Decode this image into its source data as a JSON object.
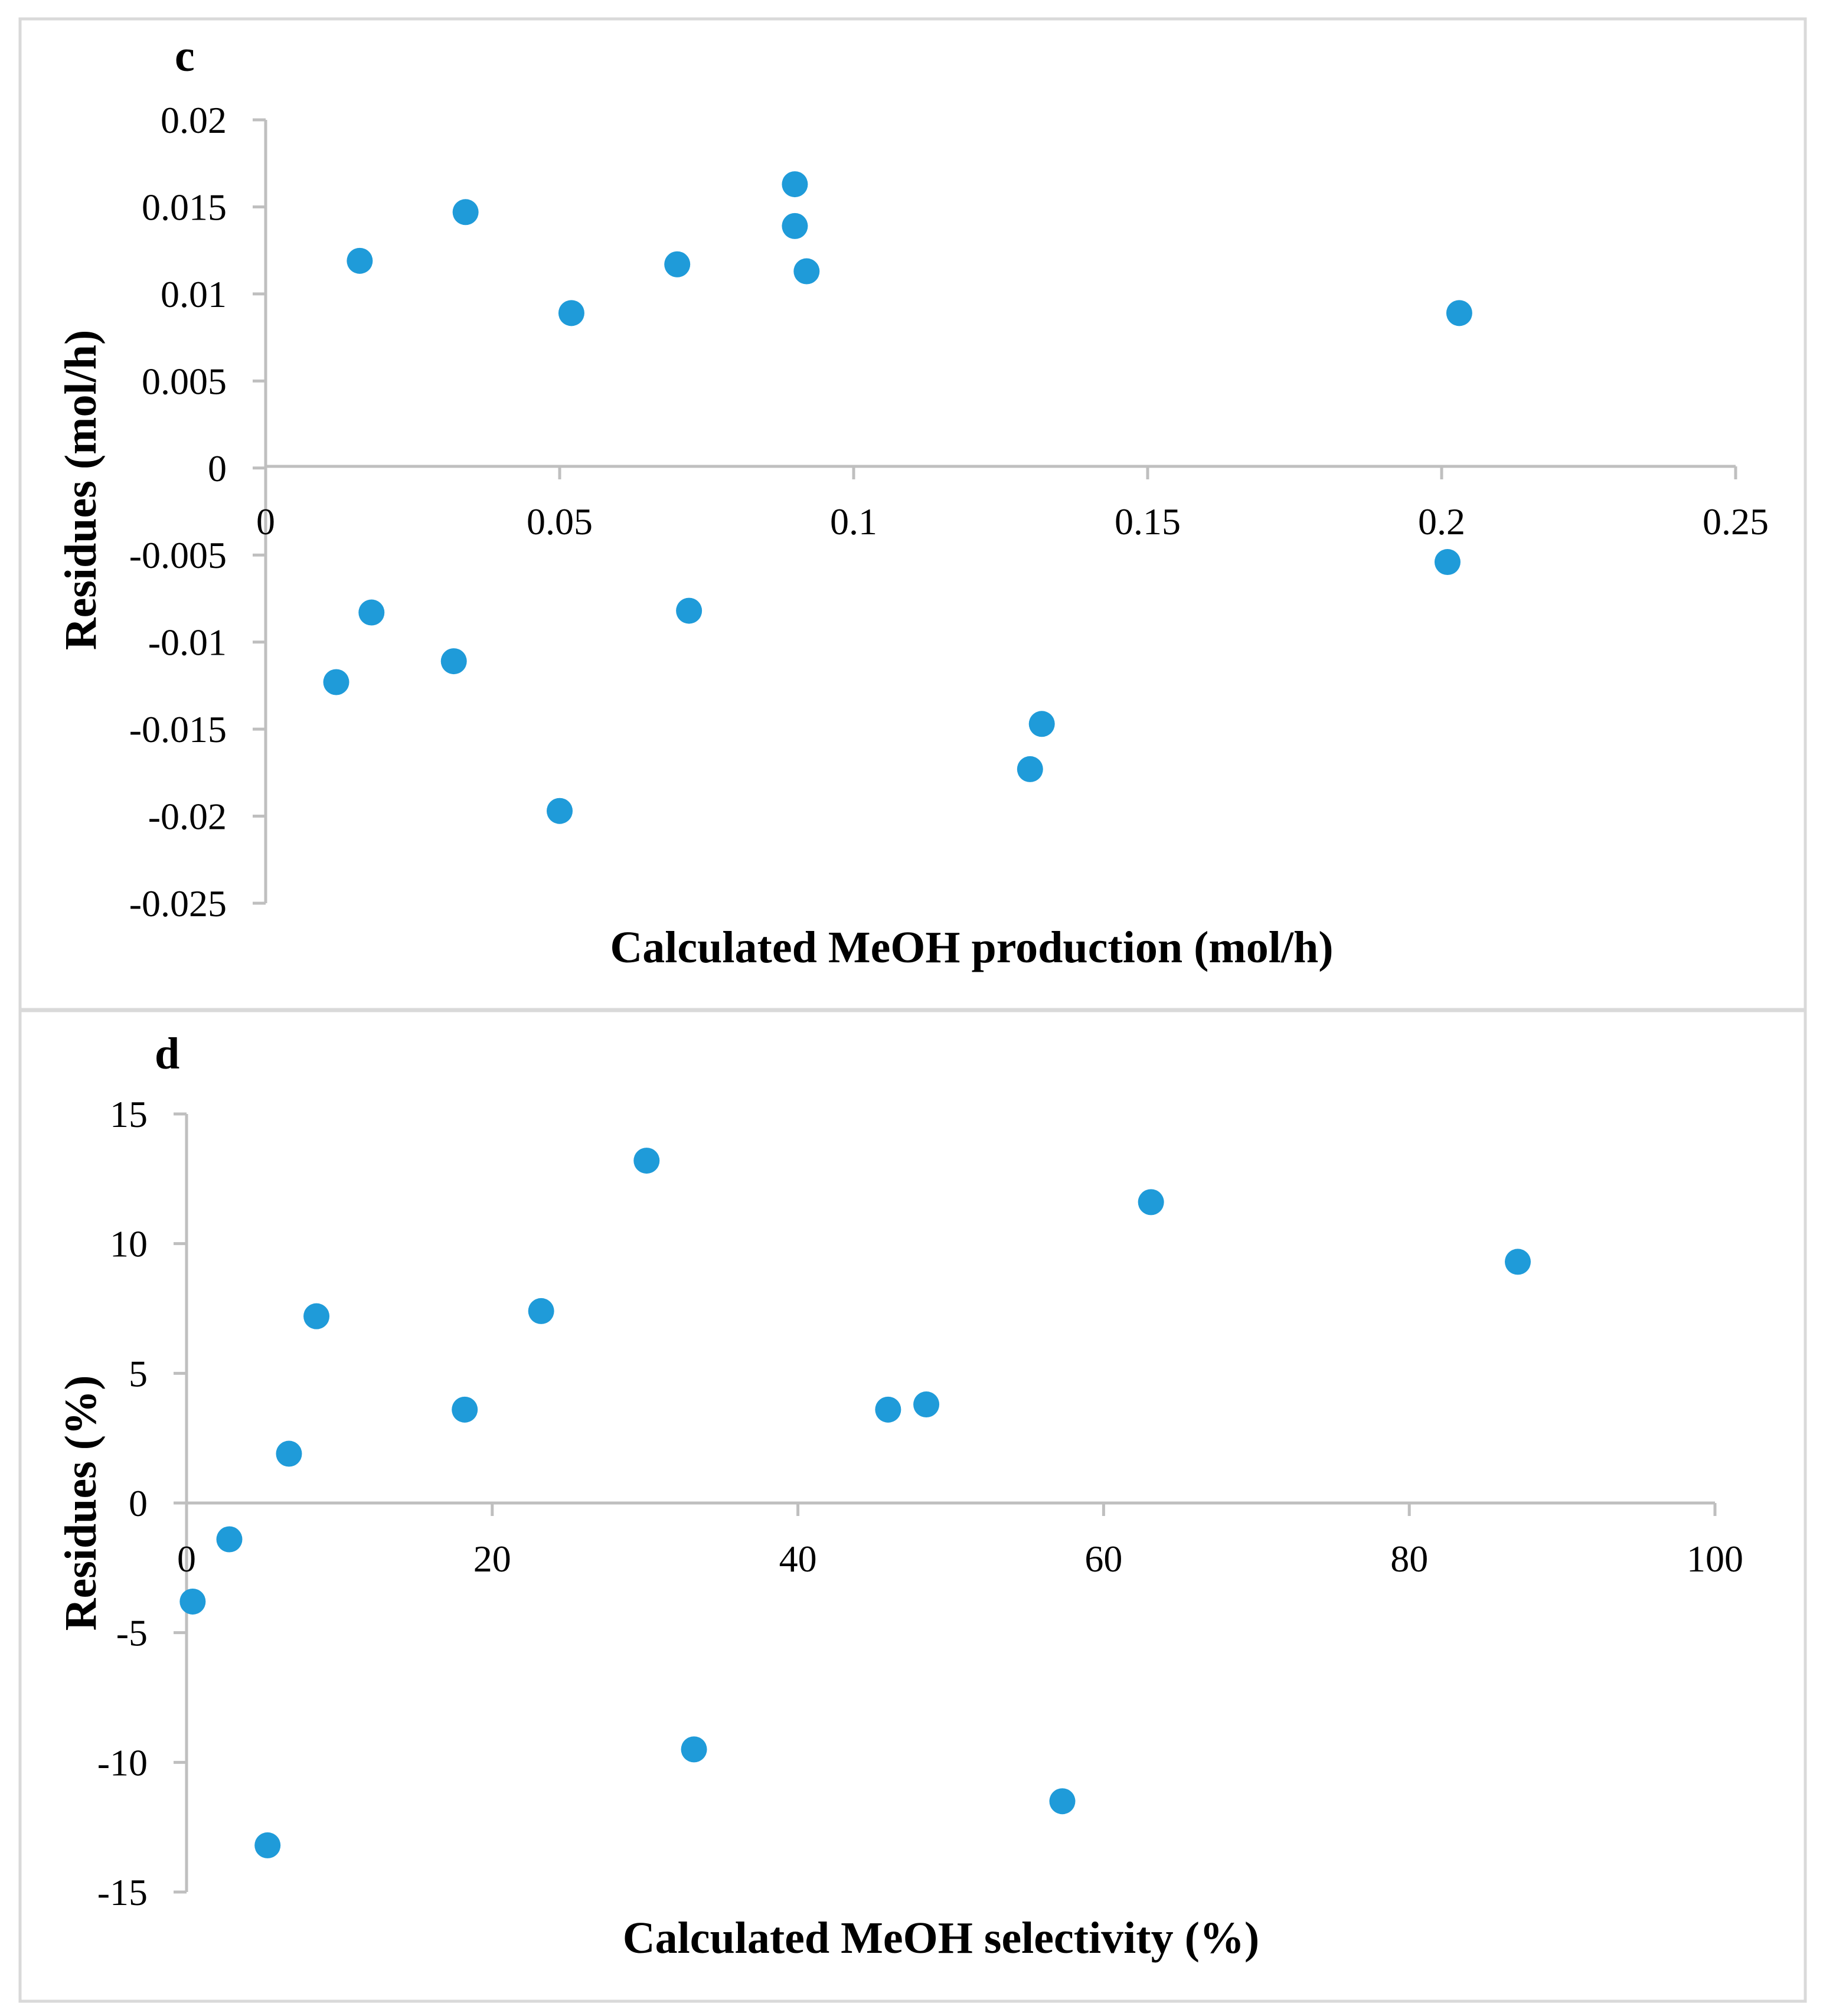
{
  "chart_data": [
    {
      "panel": "c",
      "type": "scatter",
      "title": "",
      "xlabel": "Calculated MeOH production (mol/h)",
      "ylabel": "Residues (mol/h)",
      "xlim": [
        0,
        0.25
      ],
      "ylim": [
        -0.025,
        0.02
      ],
      "x_ticks": [
        0,
        0.05,
        0.1,
        0.15,
        0.2,
        0.25
      ],
      "x_tick_labels": [
        "0",
        "0.05",
        "0.1",
        "0.15",
        "0.2",
        "0.25"
      ],
      "y_ticks": [
        0.02,
        0.015,
        0.01,
        0.005,
        0,
        -0.005,
        -0.01,
        -0.015,
        -0.02,
        -0.025
      ],
      "y_tick_labels": [
        "0.02",
        "0.015",
        "0.01",
        "0.005",
        "0",
        "-0.005",
        "-0.01",
        "-0.015",
        "-0.02",
        "-0.025"
      ],
      "marker_color": "#1f9bd9",
      "grid": false,
      "x": [
        0.016,
        0.034,
        0.052,
        0.07,
        0.09,
        0.09,
        0.092,
        0.203,
        0.012,
        0.018,
        0.032,
        0.05,
        0.072,
        0.13,
        0.132,
        0.201
      ],
      "y": [
        0.0119,
        0.0147,
        0.0089,
        0.0117,
        0.0163,
        0.0139,
        0.0113,
        0.0089,
        -0.0123,
        -0.0083,
        -0.0111,
        -0.0197,
        -0.0082,
        -0.0173,
        -0.0147,
        -0.0054
      ]
    },
    {
      "panel": "d",
      "type": "scatter",
      "title": "",
      "xlabel": "Calculated MeOH selectivity (%)",
      "ylabel": "Residues (%)",
      "xlim": [
        0,
        100
      ],
      "ylim": [
        -15,
        15
      ],
      "x_ticks": [
        0,
        20,
        40,
        60,
        80,
        100
      ],
      "x_tick_labels": [
        "0",
        "20",
        "40",
        "60",
        "80",
        "100"
      ],
      "y_ticks": [
        15,
        10,
        5,
        0,
        -5,
        -10,
        -15
      ],
      "y_tick_labels": [
        "15",
        "10",
        "5",
        "0",
        "-5",
        "-10",
        "-15"
      ],
      "marker_color": "#1f9bd9",
      "grid": false,
      "x": [
        0.4,
        2.8,
        5.3,
        6.7,
        8.5,
        18.2,
        23.2,
        30.1,
        33.2,
        45.9,
        48.4,
        57.3,
        63.1,
        87.1
      ],
      "y": [
        -3.8,
        -1.4,
        -13.2,
        1.9,
        7.2,
        3.6,
        7.4,
        13.2,
        -9.5,
        3.6,
        3.8,
        -11.5,
        11.6,
        9.3
      ]
    }
  ]
}
